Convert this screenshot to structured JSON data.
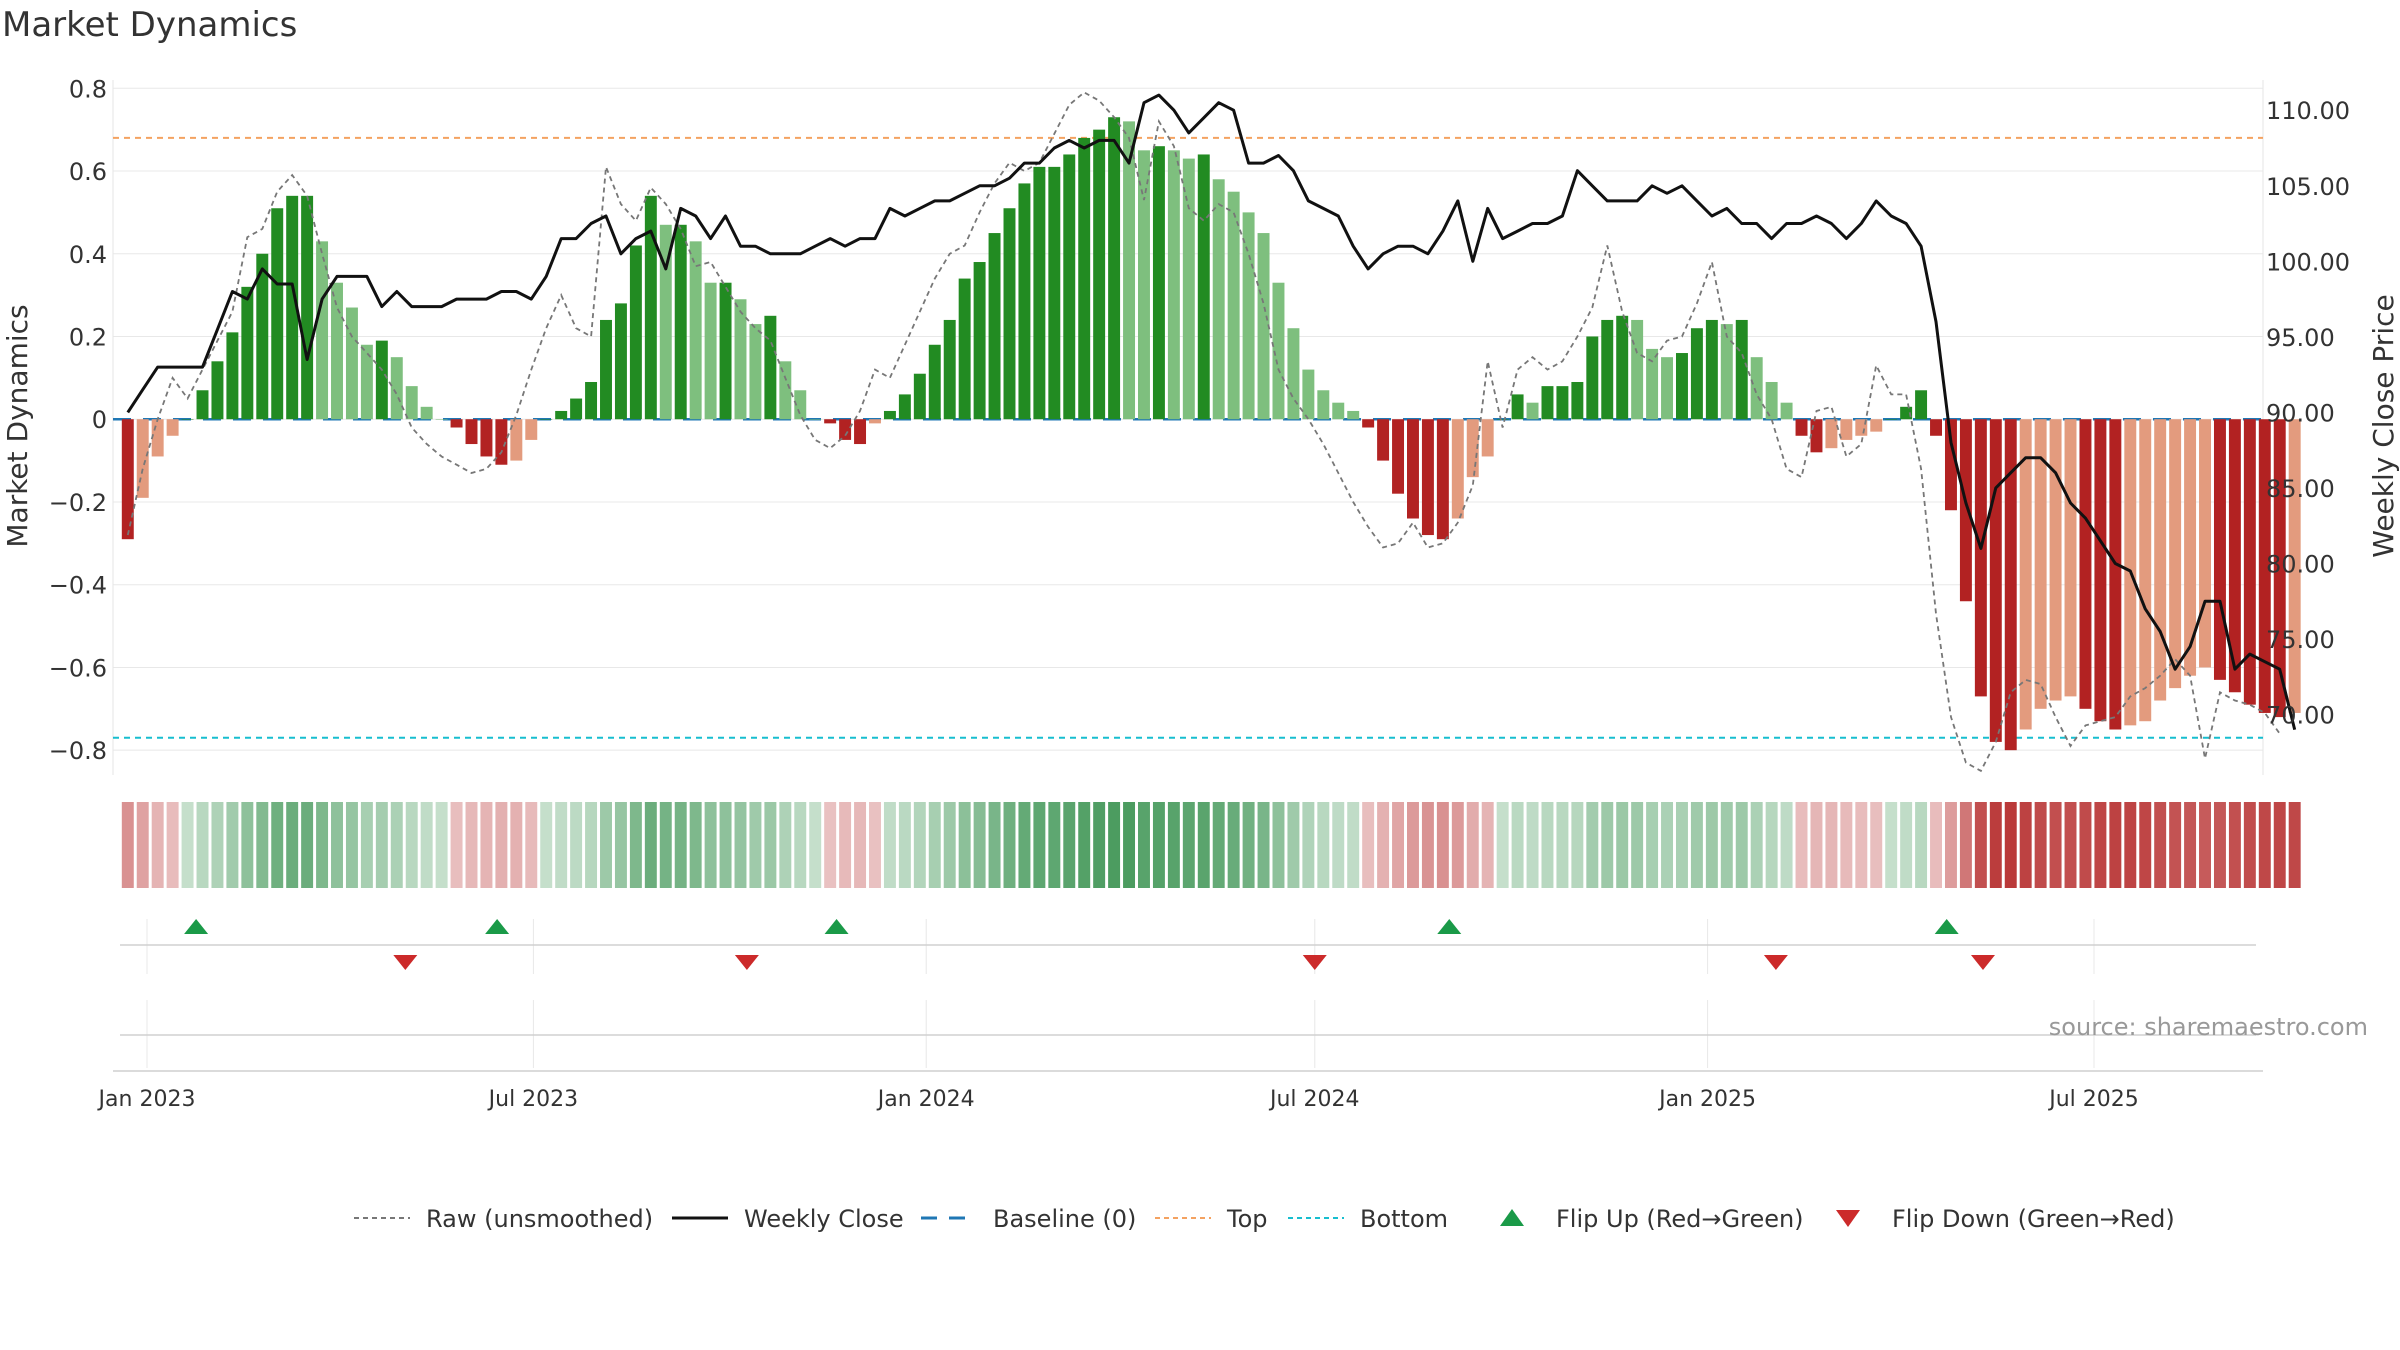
{
  "title": "Market Dynamics",
  "source": "source: sharemaestro.com",
  "colors": {
    "strong_green": "#228b22",
    "light_green": "#7ebf7e",
    "strong_red": "#b22222",
    "light_red": "#e39b7e",
    "close_line": "#111111",
    "raw_line": "#777777",
    "baseline": "#1f77b4",
    "top": "#f4a261",
    "bottom": "#17becf",
    "flip_up": "#1a9a48",
    "flip_down": "#cc2a2a",
    "grid": "#e8e8e8"
  },
  "chart_data": {
    "type": "bar",
    "title": "Market Dynamics",
    "ylabel": "Market Dynamics",
    "y2label": "Weekly Close Price",
    "ylim": [
      -0.86,
      0.82
    ],
    "y2lim": [
      66.0,
      112.0
    ],
    "yticks": [
      "0.8",
      "0.6",
      "0.4",
      "0.2",
      "0",
      "−0.2",
      "−0.4",
      "−0.6",
      "−0.8"
    ],
    "y2ticks": [
      "110.00",
      "105.00",
      "100.00",
      "95.00",
      "90.00",
      "85.00",
      "80.00",
      "75.00",
      "70.00"
    ],
    "xticks": [
      "Jan 2023",
      "Jul 2023",
      "Jan 2024",
      "Jul 2024",
      "Jan 2025",
      "Jul 2025"
    ],
    "xtick_dates": [
      "2023-01-01",
      "2023-07-01",
      "2024-01-01",
      "2024-07-01",
      "2025-01-01",
      "2025-07-01"
    ],
    "first_week": "2022-12-23",
    "weeks": 145,
    "top_level": 0.68,
    "bottom_level": -0.77,
    "baseline_level": 0,
    "series": [
      {
        "name": "Market Dynamics",
        "values": [
          -0.29,
          -0.19,
          -0.09,
          -0.04,
          0.0,
          0.07,
          0.14,
          0.21,
          0.32,
          0.4,
          0.51,
          0.54,
          0.54,
          0.43,
          0.33,
          0.27,
          0.18,
          0.19,
          0.15,
          0.08,
          0.03,
          0.0,
          -0.02,
          -0.06,
          -0.09,
          -0.11,
          -0.1,
          -0.05,
          0.0,
          0.02,
          0.05,
          0.09,
          0.24,
          0.28,
          0.42,
          0.54,
          0.47,
          0.47,
          0.43,
          0.33,
          0.33,
          0.29,
          0.23,
          0.25,
          0.14,
          0.07,
          0.0,
          -0.01,
          -0.05,
          -0.06,
          -0.01,
          0.02,
          0.06,
          0.11,
          0.18,
          0.24,
          0.34,
          0.38,
          0.45,
          0.51,
          0.57,
          0.61,
          0.61,
          0.64,
          0.68,
          0.7,
          0.73,
          0.72,
          0.65,
          0.66,
          0.65,
          0.63,
          0.64,
          0.58,
          0.55,
          0.5,
          0.45,
          0.33,
          0.22,
          0.12,
          0.07,
          0.04,
          0.02,
          -0.02,
          -0.1,
          -0.18,
          -0.24,
          -0.28,
          -0.29,
          -0.24,
          -0.14,
          -0.09,
          0.0,
          0.06,
          0.04,
          0.08,
          0.08,
          0.09,
          0.2,
          0.24,
          0.25,
          0.24,
          0.17,
          0.15,
          0.16,
          0.22,
          0.24,
          0.23,
          0.24,
          0.15,
          0.09,
          0.04,
          -0.04,
          -0.08,
          -0.07,
          -0.05,
          -0.04,
          -0.03,
          0.0,
          0.03,
          0.07,
          -0.04,
          -0.22,
          -0.44,
          -0.67,
          -0.78,
          -0.8,
          -0.75,
          -0.7,
          -0.68,
          -0.67,
          -0.7,
          -0.73,
          -0.75,
          -0.74,
          -0.73,
          -0.68,
          -0.65,
          -0.62,
          -0.6,
          -0.63,
          -0.66,
          -0.69,
          -0.71,
          -0.72,
          -0.71
        ]
      },
      {
        "name": "Raw (unsmoothed)",
        "values": [
          -0.28,
          -0.12,
          0.0,
          0.1,
          0.05,
          0.12,
          0.19,
          0.26,
          0.44,
          0.46,
          0.55,
          0.59,
          0.54,
          0.4,
          0.27,
          0.2,
          0.16,
          0.12,
          0.06,
          -0.02,
          -0.06,
          -0.09,
          -0.11,
          -0.13,
          -0.12,
          -0.08,
          0.01,
          0.12,
          0.22,
          0.3,
          0.22,
          0.2,
          0.61,
          0.52,
          0.48,
          0.56,
          0.52,
          0.46,
          0.37,
          0.38,
          0.32,
          0.26,
          0.22,
          0.19,
          0.1,
          0.01,
          -0.05,
          -0.07,
          -0.04,
          0.02,
          0.12,
          0.1,
          0.18,
          0.26,
          0.34,
          0.4,
          0.42,
          0.5,
          0.57,
          0.62,
          0.6,
          0.62,
          0.69,
          0.76,
          0.79,
          0.77,
          0.73,
          0.68,
          0.53,
          0.72,
          0.66,
          0.51,
          0.48,
          0.52,
          0.5,
          0.4,
          0.28,
          0.12,
          0.05,
          0.0,
          -0.06,
          -0.13,
          -0.2,
          -0.26,
          -0.31,
          -0.3,
          -0.25,
          -0.31,
          -0.3,
          -0.25,
          -0.16,
          0.14,
          -0.02,
          0.12,
          0.15,
          0.12,
          0.14,
          0.2,
          0.27,
          0.42,
          0.26,
          0.16,
          0.14,
          0.19,
          0.2,
          0.28,
          0.38,
          0.2,
          0.16,
          0.06,
          0.0,
          -0.12,
          -0.14,
          0.02,
          0.03,
          -0.09,
          -0.06,
          0.13,
          0.06,
          0.06,
          -0.12,
          -0.47,
          -0.72,
          -0.83,
          -0.85,
          -0.78,
          -0.66,
          -0.63,
          -0.64,
          -0.72,
          -0.79,
          -0.74,
          -0.73,
          -0.72,
          -0.67,
          -0.65,
          -0.62,
          -0.58,
          -0.62,
          -0.82,
          -0.66,
          -0.68,
          -0.69,
          -0.71,
          -0.76
        ]
      },
      {
        "name": "Weekly Close",
        "values": [
          90.0,
          91.5,
          93.0,
          93.0,
          93.0,
          93.0,
          95.5,
          98.0,
          97.5,
          99.5,
          98.5,
          98.5,
          93.5,
          97.5,
          99.0,
          99.0,
          99.0,
          97.0,
          98.0,
          97.0,
          97.0,
          97.0,
          97.5,
          97.5,
          97.5,
          98.0,
          98.0,
          97.5,
          99.0,
          101.5,
          101.5,
          102.5,
          103.0,
          100.5,
          101.5,
          102.0,
          99.5,
          103.5,
          103.0,
          101.5,
          103.0,
          101.0,
          101.0,
          100.5,
          100.5,
          100.5,
          101.0,
          101.5,
          101.0,
          101.5,
          101.5,
          103.5,
          103.0,
          103.5,
          104.0,
          104.0,
          104.5,
          105.0,
          105.0,
          105.5,
          106.5,
          106.5,
          107.5,
          108.0,
          107.5,
          108.0,
          108.0,
          106.5,
          110.5,
          111.0,
          110.0,
          108.5,
          109.5,
          110.5,
          110.0,
          106.5,
          106.5,
          107.0,
          106.0,
          104.0,
          103.5,
          103.0,
          101.0,
          99.5,
          100.5,
          101.0,
          101.0,
          100.5,
          102.0,
          104.0,
          100.0,
          103.5,
          101.5,
          102.0,
          102.5,
          102.5,
          103.0,
          106.0,
          105.0,
          104.0,
          104.0,
          104.0,
          105.0,
          104.5,
          105.0,
          104.0,
          103.0,
          103.5,
          102.5,
          102.5,
          101.5,
          102.5,
          102.5,
          103.0,
          102.5,
          101.5,
          102.5,
          104.0,
          103.0,
          102.5,
          101.0,
          96.0,
          88.0,
          84.0,
          81.0,
          85.0,
          86.0,
          87.0,
          87.0,
          86.0,
          84.0,
          83.0,
          81.5,
          80.0,
          79.5,
          77.0,
          75.5,
          73.0,
          74.5,
          77.5,
          77.5,
          73.0,
          74.0,
          73.5,
          73.0,
          69.0
        ]
      }
    ],
    "flip_up": [
      "2023-01-24",
      "2023-06-14",
      "2023-11-20",
      "2024-09-02",
      "2025-04-23"
    ],
    "flip_down": [
      "2023-05-02",
      "2023-10-09",
      "2024-07-01",
      "2025-02-02",
      "2025-05-10"
    ]
  },
  "legend": {
    "items": [
      {
        "label": "Raw (unsmoothed)",
        "kind": "dashed-gray"
      },
      {
        "label": "Weekly Close",
        "kind": "solid-black"
      },
      {
        "label": "Baseline (0)",
        "kind": "dashed-blue"
      },
      {
        "label": "Top",
        "kind": "dotted-orange"
      },
      {
        "label": "Bottom",
        "kind": "dotted-cyan"
      },
      {
        "label": "Flip Up (Red→Green)",
        "kind": "triangle-up"
      },
      {
        "label": "Flip Down (Green→Red)",
        "kind": "triangle-down"
      }
    ]
  }
}
